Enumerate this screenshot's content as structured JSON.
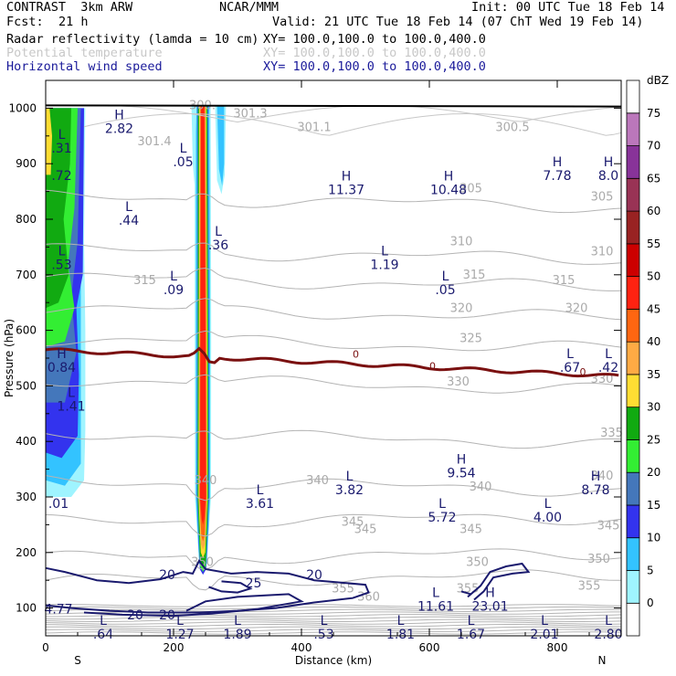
{
  "header": {
    "model": "CONTRAST  3km ARW",
    "center": "NCAR/MMM",
    "init": "Init: 00 UTC Tue 18 Feb 14",
    "fcst_label": "Fcst:",
    "fcst_value": "21 h",
    "valid": "Valid: 21 UTC Tue 18 Feb 14 (07 ChT Wed 19 Feb 14)",
    "fields": [
      {
        "name": "Radar reflectivity (lamda = 10 cm)",
        "xy": "XY= 100.0,100.0 to 100.0,400.0",
        "dim": false
      },
      {
        "name": "Potential temperature",
        "xy": "XY= 100.0,100.0 to 100.0,400.0",
        "dim": true
      },
      {
        "name": "Horizontal wind speed",
        "xy": "XY= 100.0,100.0 to 100.0,400.0",
        "dim": false
      }
    ]
  },
  "chart_data": {
    "type": "cross-section",
    "xlabel": "Distance (km)",
    "ylabel": "Pressure (hPa)",
    "xlim": [
      0,
      900
    ],
    "ylim": [
      1050,
      50
    ],
    "x_ticks": [
      0,
      200,
      400,
      600,
      800
    ],
    "y_ticks": [
      100,
      200,
      300,
      400,
      500,
      600,
      700,
      800,
      900,
      1000
    ],
    "end_labels": {
      "left": "S",
      "right": "N"
    },
    "colorbar": {
      "unit": "dBZ",
      "levels": [
        0,
        5,
        10,
        15,
        20,
        25,
        30,
        35,
        40,
        45,
        50,
        55,
        60,
        65,
        70,
        75
      ],
      "colors": [
        "#ffffff",
        "#9ff4ff",
        "#33c3ff",
        "#3333ee",
        "#4477bb",
        "#33ee33",
        "#11aa11",
        "#ffdd33",
        "#ffaa44",
        "#ff6611",
        "#ff2211",
        "#cc0000",
        "#992222",
        "#993355",
        "#883399",
        "#bb77bb",
        "#ffffff"
      ]
    },
    "theta_lines": [
      {
        "label": "355",
        "p": 150
      },
      {
        "label": "350",
        "p": 190
      },
      {
        "label": "345",
        "p": 255
      },
      {
        "label": "340",
        "p": 330
      },
      {
        "label": "335",
        "p": 415
      },
      {
        "label": "330",
        "p": 512
      },
      {
        "label": "325",
        "p": 585
      },
      {
        "label": "320",
        "p": 640
      },
      {
        "label": "315",
        "p": 695
      },
      {
        "label": "310",
        "p": 745
      },
      {
        "label": "305",
        "p": 840
      }
    ],
    "theta_labels": [
      {
        "text": "355",
        "x": 465,
        "p": 135
      },
      {
        "text": "360",
        "x": 505,
        "p": 120
      },
      {
        "text": "355",
        "x": 660,
        "p": 135
      },
      {
        "text": "355",
        "x": 850,
        "p": 140
      },
      {
        "text": "350",
        "x": 245,
        "p": 182
      },
      {
        "text": "350",
        "x": 675,
        "p": 182
      },
      {
        "text": "350",
        "x": 865,
        "p": 188
      },
      {
        "text": "345",
        "x": 480,
        "p": 255
      },
      {
        "text": "345",
        "x": 500,
        "p": 242
      },
      {
        "text": "345",
        "x": 665,
        "p": 242
      },
      {
        "text": "345",
        "x": 880,
        "p": 248
      },
      {
        "text": "340",
        "x": 250,
        "p": 330
      },
      {
        "text": "340",
        "x": 425,
        "p": 330
      },
      {
        "text": "340",
        "x": 680,
        "p": 318
      },
      {
        "text": "340",
        "x": 870,
        "p": 338
      },
      {
        "text": "335",
        "x": 885,
        "p": 415
      },
      {
        "text": "330",
        "x": 645,
        "p": 507
      },
      {
        "text": "330",
        "x": 870,
        "p": 512
      },
      {
        "text": "325",
        "x": 665,
        "p": 585
      },
      {
        "text": "320",
        "x": 650,
        "p": 640
      },
      {
        "text": "320",
        "x": 830,
        "p": 640
      },
      {
        "text": "315",
        "x": 155,
        "p": 690
      },
      {
        "text": "315",
        "x": 670,
        "p": 700
      },
      {
        "text": "315",
        "x": 810,
        "p": 690
      },
      {
        "text": "310",
        "x": 650,
        "p": 760
      },
      {
        "text": "310",
        "x": 870,
        "p": 742
      },
      {
        "text": "305",
        "x": 665,
        "p": 855
      },
      {
        "text": "305",
        "x": 870,
        "p": 840
      },
      {
        "text": "301.4",
        "x": 170,
        "p": 940
      },
      {
        "text": "301.3",
        "x": 320,
        "p": 990
      },
      {
        "text": "301.1",
        "x": 420,
        "p": 965
      },
      {
        "text": "300.5",
        "x": 730,
        "p": 965
      },
      {
        "text": "300.",
        "x": 245,
        "p": 1005
      }
    ],
    "zero_isotherm_label": "0",
    "wind_contours": [
      {
        "label": "20",
        "x": 140,
        "p": 88
      },
      {
        "label": "20",
        "x": 190,
        "p": 88
      },
      {
        "label": "25",
        "x": 325,
        "p": 145
      },
      {
        "label": "20",
        "x": 190,
        "p": 160
      },
      {
        "label": "20",
        "x": 420,
        "p": 160
      }
    ],
    "extrema": [
      {
        "type": "L",
        "value": ".64",
        "x": 90,
        "p": 70
      },
      {
        "type": "L",
        "value": "1.27",
        "x": 210,
        "p": 70
      },
      {
        "type": "L",
        "value": "1.89",
        "x": 300,
        "p": 70
      },
      {
        "type": "L",
        "value": ".53",
        "x": 435,
        "p": 70
      },
      {
        "type": "L",
        "value": "1.81",
        "x": 555,
        "p": 70
      },
      {
        "type": "L",
        "value": "1.67",
        "x": 665,
        "p": 70
      },
      {
        "type": "L",
        "value": "2.01",
        "x": 780,
        "p": 70
      },
      {
        "type": "L",
        "value": "2.80",
        "x": 880,
        "p": 70
      },
      {
        "type": "",
        "value": "4.77",
        "x": 20,
        "p": 115
      },
      {
        "type": "L",
        "value": "11.61",
        "x": 610,
        "p": 120
      },
      {
        "type": "H",
        "value": "23.01",
        "x": 695,
        "p": 120
      },
      {
        "type": "",
        "value": ".01",
        "x": 20,
        "p": 305
      },
      {
        "type": "L",
        "value": "3.61",
        "x": 335,
        "p": 305
      },
      {
        "type": "L",
        "value": "3.82",
        "x": 475,
        "p": 330
      },
      {
        "type": "L",
        "value": "5.72",
        "x": 620,
        "p": 280
      },
      {
        "type": "L",
        "value": "4.00",
        "x": 785,
        "p": 280
      },
      {
        "type": "H",
        "value": "8.78",
        "x": 860,
        "p": 330
      },
      {
        "type": "H",
        "value": "9.54",
        "x": 650,
        "p": 360
      },
      {
        "type": "L",
        "value": "1.41",
        "x": 40,
        "p": 480
      },
      {
        "type": "H",
        "value": "0.84",
        "x": 25,
        "p": 550
      },
      {
        "type": "L",
        "value": ".67",
        "x": 820,
        "p": 550
      },
      {
        "type": "L",
        "value": ".42",
        "x": 880,
        "p": 550
      },
      {
        "type": "L",
        "value": ".09",
        "x": 200,
        "p": 690
      },
      {
        "type": "L",
        "value": ".05",
        "x": 625,
        "p": 690
      },
      {
        "type": "L",
        "value": "1.19",
        "x": 530,
        "p": 735
      },
      {
        "type": "L",
        "value": ".53",
        "x": 25,
        "p": 735
      },
      {
        "type": "L",
        "value": ".36",
        "x": 270,
        "p": 770
      },
      {
        "type": "L",
        "value": ".44",
        "x": 130,
        "p": 815
      },
      {
        "type": "H",
        "value": "11.37",
        "x": 470,
        "p": 870
      },
      {
        "type": "H",
        "value": "10.48",
        "x": 630,
        "p": 870
      },
      {
        "type": "",
        "value": ".72",
        "x": 25,
        "p": 895
      },
      {
        "type": "H",
        "value": "7.78",
        "x": 800,
        "p": 895
      },
      {
        "type": "H",
        "value": "8.0",
        "x": 880,
        "p": 895
      },
      {
        "type": "L",
        "value": ".05",
        "x": 215,
        "p": 920
      },
      {
        "type": "L",
        "value": ".31",
        "x": 25,
        "p": 945
      },
      {
        "type": "H",
        "value": "2.82",
        "x": 115,
        "p": 980
      }
    ]
  }
}
